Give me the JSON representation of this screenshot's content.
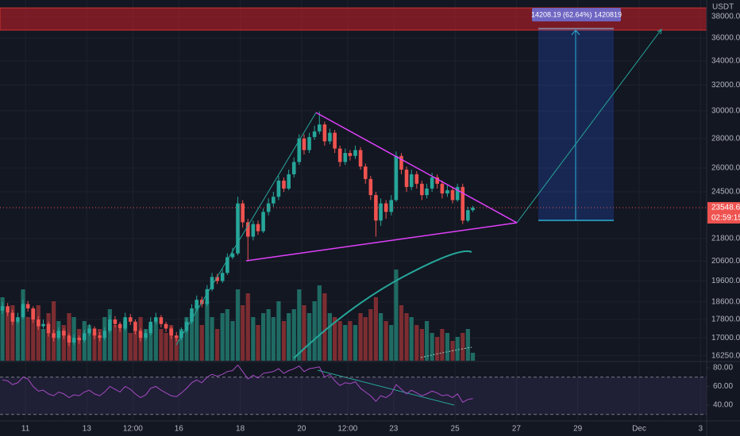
{
  "chart_data": {
    "type": "candlestick",
    "currency": "USDT",
    "log_scale": true,
    "grid": true,
    "up_color": "#26a69a",
    "down_color": "#ef5350",
    "x": [
      10.25,
      10.42,
      10.58,
      10.75,
      10.92,
      11.08,
      11.25,
      11.42,
      11.58,
      11.75,
      11.92,
      12.08,
      12.25,
      12.42,
      12.58,
      12.75,
      12.92,
      13.08,
      13.25,
      13.42,
      13.58,
      13.75,
      13.92,
      14.08,
      14.25,
      14.42,
      14.58,
      14.75,
      14.92,
      15.08,
      15.25,
      15.42,
      15.58,
      15.75,
      15.92,
      16.08,
      16.25,
      16.42,
      16.58,
      16.75,
      16.92,
      17.08,
      17.25,
      17.42,
      17.58,
      17.75,
      17.92,
      18.08,
      18.25,
      18.42,
      18.58,
      18.75,
      18.92,
      19.08,
      19.25,
      19.42,
      19.58,
      19.75,
      19.92,
      20.08,
      20.25,
      20.42,
      20.58,
      20.75,
      20.92,
      21.08,
      21.25,
      21.42,
      21.58,
      21.75,
      21.92,
      22.08,
      22.25,
      22.42,
      22.58,
      22.75,
      22.92,
      23.08,
      23.25,
      23.42,
      23.58,
      23.75,
      23.92,
      24.08,
      24.25,
      24.42,
      24.58,
      24.75,
      24.92,
      25.08,
      25.25,
      25.42,
      25.58
    ],
    "open": [
      18200,
      18400,
      18100,
      17700,
      17900,
      18500,
      18300,
      17800,
      17500,
      17600,
      17200,
      17000,
      17300,
      17100,
      16800,
      17000,
      16900,
      17200,
      17400,
      17100,
      17000,
      17300,
      17800,
      17600,
      17400,
      17900,
      17700,
      17300,
      17000,
      17200,
      17700,
      17900,
      17600,
      17400,
      17100,
      17000,
      17300,
      17700,
      18300,
      18700,
      18500,
      19200,
      19800,
      19600,
      20000,
      20800,
      21000,
      23800,
      22700,
      21900,
      22600,
      22200,
      23300,
      23800,
      24200,
      25200,
      24700,
      25600,
      26400,
      28000,
      27200,
      28100,
      28500,
      29000,
      27800,
      28400,
      27300,
      26400,
      27000,
      26800,
      27200,
      26100,
      25300,
      24300,
      22800,
      23800,
      23300,
      24000,
      26800,
      25900,
      24800,
      25600,
      25000,
      24300,
      24700,
      25400,
      25000,
      24400,
      24600,
      24000,
      24800,
      22800,
      23400
    ],
    "high": [
      18600,
      18550,
      18250,
      18100,
      18700,
      18650,
      18400,
      17950,
      17800,
      17700,
      17350,
      17450,
      17400,
      17200,
      17150,
      17100,
      17350,
      17600,
      17500,
      17250,
      17450,
      18000,
      17950,
      17700,
      18100,
      18050,
      17800,
      17400,
      17350,
      17900,
      18100,
      18000,
      17700,
      17500,
      17250,
      17450,
      17850,
      18500,
      18900,
      18850,
      19400,
      20000,
      19950,
      20200,
      21000,
      21300,
      24200,
      24000,
      22900,
      22800,
      22800,
      23500,
      24100,
      24500,
      25500,
      25400,
      25900,
      26700,
      28300,
      28300,
      28400,
      28900,
      29950,
      29200,
      28700,
      28600,
      27500,
      27300,
      27200,
      27500,
      27400,
      26300,
      25500,
      24500,
      24100,
      24000,
      24300,
      27100,
      27000,
      26100,
      25900,
      25800,
      25200,
      25000,
      25700,
      25600,
      25200,
      24900,
      24800,
      25000,
      25000,
      23600,
      23650
    ],
    "low": [
      18050,
      17950,
      17550,
      17600,
      17800,
      18150,
      17650,
      17350,
      17400,
      17050,
      16850,
      16900,
      16950,
      16650,
      16700,
      16750,
      16800,
      17100,
      16950,
      16850,
      16900,
      17200,
      17450,
      17250,
      17300,
      17550,
      17150,
      16850,
      16900,
      17100,
      17600,
      17450,
      17250,
      16950,
      16850,
      16900,
      17200,
      17600,
      18200,
      18350,
      18400,
      19100,
      19450,
      19500,
      19900,
      20700,
      20900,
      22400,
      20600,
      21700,
      22000,
      22100,
      23100,
      23600,
      24000,
      24500,
      24600,
      25400,
      26200,
      26900,
      27000,
      27900,
      28300,
      27500,
      27600,
      27000,
      26100,
      26200,
      26500,
      26600,
      25900,
      25000,
      24000,
      21900,
      22500,
      22900,
      23100,
      23900,
      25600,
      24500,
      24600,
      24700,
      24000,
      24100,
      24500,
      24700,
      24100,
      24200,
      23800,
      23900,
      22600,
      22700,
      23300
    ],
    "close": [
      18400,
      18100,
      17700,
      17900,
      18500,
      18300,
      17800,
      17500,
      17600,
      17200,
      17000,
      17300,
      17100,
      16800,
      17000,
      16900,
      17200,
      17400,
      17100,
      17000,
      17300,
      17800,
      17600,
      17400,
      17900,
      17700,
      17300,
      17000,
      17200,
      17700,
      17900,
      17600,
      17400,
      17100,
      17000,
      17300,
      17700,
      18300,
      18700,
      18500,
      19200,
      19800,
      19600,
      20000,
      20800,
      21000,
      23800,
      22700,
      21900,
      22600,
      22200,
      23300,
      23800,
      24200,
      25200,
      24700,
      25600,
      26400,
      28000,
      27200,
      28100,
      28500,
      29000,
      27800,
      28400,
      27300,
      26400,
      27000,
      26800,
      27200,
      26100,
      25300,
      24300,
      22800,
      23800,
      23300,
      24000,
      26800,
      25900,
      24800,
      25600,
      25000,
      24300,
      24700,
      25400,
      25000,
      24400,
      24600,
      24000,
      24800,
      22800,
      23400,
      23550
    ],
    "volume": {
      "up_color": "#1f6b63",
      "down_color": "#7c2d31",
      "values": [
        80,
        60,
        70,
        50,
        90,
        55,
        65,
        70,
        40,
        60,
        75,
        50,
        45,
        60,
        55,
        40,
        50,
        45,
        35,
        40,
        55,
        65,
        45,
        40,
        50,
        35,
        40,
        55,
        40,
        45,
        50,
        40,
        35,
        45,
        30,
        40,
        55,
        60,
        70,
        45,
        75,
        55,
        40,
        60,
        65,
        50,
        90,
        70,
        85,
        55,
        45,
        60,
        65,
        55,
        75,
        50,
        60,
        65,
        90,
        70,
        60,
        75,
        95,
        85,
        60,
        55,
        50,
        45,
        50,
        45,
        60,
        55,
        65,
        80,
        60,
        50,
        45,
        115,
        70,
        60,
        55,
        45,
        40,
        50,
        35,
        30,
        40,
        35,
        25,
        30,
        35,
        40,
        10
      ]
    },
    "xlim": [
      10.17,
      33.2
    ],
    "xticks": [
      11,
      13,
      {
        "value": 14.5,
        "label": "12:00"
      },
      16,
      18,
      20,
      {
        "value": 21.5,
        "label": "12:00"
      },
      23,
      25,
      27,
      29,
      {
        "value": 31,
        "label": "Dec"
      },
      {
        "value": 33,
        "label": "3"
      }
    ],
    "ylim": [
      16055,
      39600
    ],
    "yticks": [
      {
        "value": 38000,
        "label": "38000.00"
      },
      {
        "value": 36000,
        "label": "36000.00"
      },
      {
        "value": 34000,
        "label": "34000.00"
      },
      {
        "value": 32000,
        "label": "32000.00"
      },
      {
        "value": 30000,
        "label": "30000.00"
      },
      {
        "value": 28000,
        "label": "28000.00"
      },
      {
        "value": 26000,
        "label": "26000.00"
      },
      {
        "value": 24500,
        "label": "24500.00"
      },
      {
        "value": 21800,
        "label": "21800.00"
      },
      {
        "value": 20600,
        "label": "20600.00"
      },
      {
        "value": 19600,
        "label": "19600.00"
      },
      {
        "value": 18600,
        "label": "18600.00"
      },
      {
        "value": 17800,
        "label": "17800.00"
      },
      {
        "value": 17000,
        "label": "17000.00"
      },
      {
        "value": 16250,
        "label": "16250.00"
      }
    ],
    "last_price": {
      "value": 23548.6,
      "label": "23548.60"
    },
    "countdown": "02:59:15",
    "annotation": "14208.19 (62.64%) 1420819",
    "rsi": {
      "color": "#a64bc4",
      "bands": [
        70,
        30
      ],
      "ylim": [
        23.8,
        85.1
      ],
      "yticks": [
        {
          "value": 80,
          "label": "80.00"
        },
        {
          "value": 60,
          "label": "60.00"
        },
        {
          "value": 40,
          "label": "40.00"
        }
      ],
      "values": [
        67,
        66,
        62,
        64,
        70,
        68,
        60,
        55,
        56,
        52,
        50,
        54,
        52,
        48,
        51,
        50,
        54,
        56,
        52,
        50,
        54,
        60,
        57,
        54,
        60,
        57,
        52,
        48,
        51,
        58,
        60,
        56,
        53,
        50,
        49,
        53,
        58,
        64,
        67,
        64,
        70,
        73,
        71,
        73,
        76,
        77,
        83,
        76,
        68,
        72,
        69,
        74,
        75,
        76,
        79,
        74,
        77,
        79,
        82,
        76,
        79,
        80,
        81,
        70,
        73,
        66,
        61,
        64,
        63,
        65,
        58,
        54,
        50,
        44,
        50,
        48,
        52,
        62,
        57,
        52,
        56,
        53,
        50,
        52,
        55,
        53,
        50,
        51,
        48,
        52,
        43,
        46,
        47
      ]
    }
  }
}
